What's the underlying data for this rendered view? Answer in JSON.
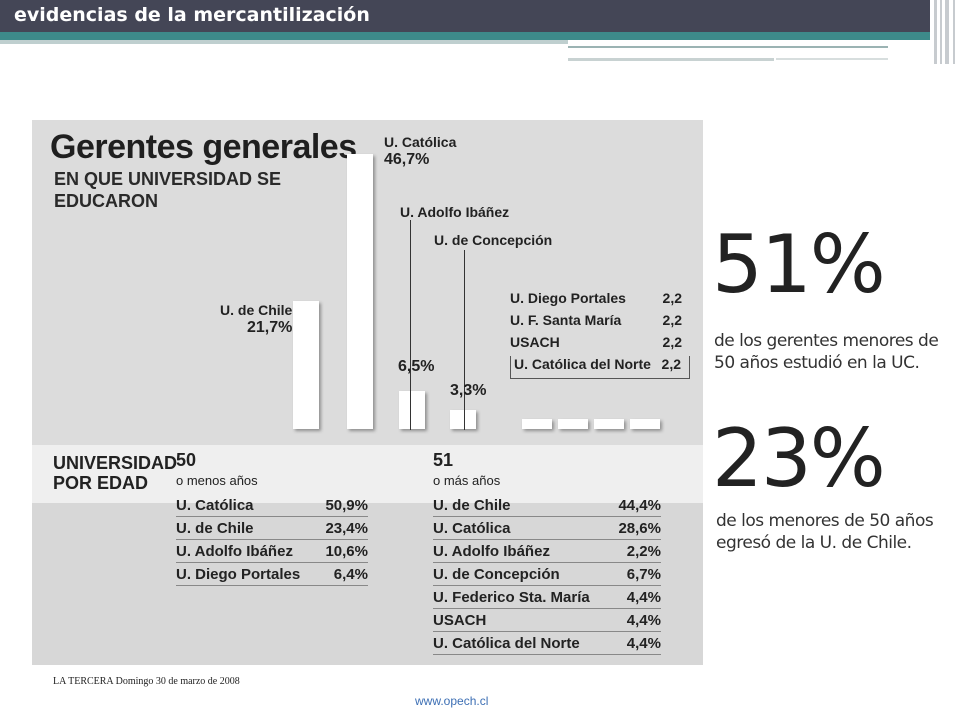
{
  "header": {
    "title": "evidencias de la mercantilización"
  },
  "figure": {
    "title": "Gerentes generales",
    "subtitle": "EN QUE UNIVERSIDAD SE EDUCARON",
    "source": "LA TERCERA  Domingo 30 de marzo de 2008"
  },
  "chart_data": [
    {
      "type": "bar",
      "title": "Gerentes generales",
      "subtitle": "EN QUE UNIVERSIDAD SE EDUCARON",
      "categories": [
        "U. de Chile",
        "U. Católica",
        "U. Adolfo Ibáñez",
        "U. de Concepción",
        "U. Diego Portales",
        "U. F. Santa María",
        "USACH",
        "U. Católica del Norte"
      ],
      "labels": [
        "21,7%",
        "46,7%",
        "6,5%",
        "3,3%",
        "2,2",
        "2,2",
        "2,2",
        "2,2"
      ],
      "values": [
        21.7,
        46.7,
        6.5,
        3.3,
        2.2,
        2.2,
        2.2,
        2.2
      ],
      "ylim": [
        0,
        46.7
      ]
    },
    {
      "type": "table",
      "title": "UNIVERSIDAD POR EDAD",
      "groups": [
        {
          "head": "50",
          "sub": "o menos años",
          "rows": [
            {
              "name": "U. Católica",
              "pct": "50,9%"
            },
            {
              "name": "U. de Chile",
              "pct": "23,4%"
            },
            {
              "name": "U. Adolfo Ibáñez",
              "pct": "10,6%"
            },
            {
              "name": "U. Diego Portales",
              "pct": "6,4%"
            }
          ]
        },
        {
          "head": "51",
          "sub": "o más años",
          "rows": [
            {
              "name": "U. de Chile",
              "pct": "44,4%"
            },
            {
              "name": "U. Católica",
              "pct": "28,6%"
            },
            {
              "name": "U. Adolfo Ibáñez",
              "pct": "2,2%"
            },
            {
              "name": "U. de Concepción",
              "pct": "6,7%"
            },
            {
              "name": "U. Federico Sta. María",
              "pct": "4,4%"
            },
            {
              "name": "USACH",
              "pct": "4,4%"
            },
            {
              "name": "U. Católica del Norte",
              "pct": "4,4%"
            }
          ]
        }
      ]
    }
  ],
  "stats": [
    {
      "value": "51%",
      "line1": "de los gerentes menores de",
      "line2": "50 años estudió en la UC."
    },
    {
      "value": "23%",
      "line1": "de los menores de 50 años",
      "line2": "egresó de la U. de Chile."
    }
  ],
  "footer": {
    "url": "www.opech.cl"
  }
}
